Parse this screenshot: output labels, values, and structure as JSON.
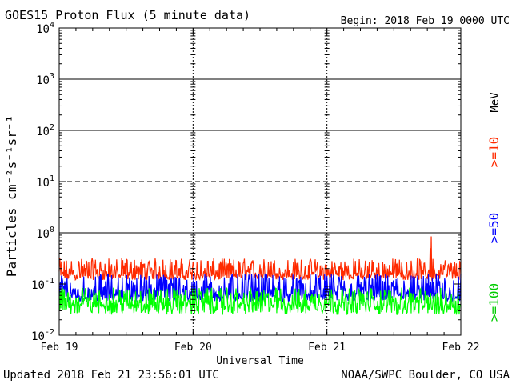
{
  "chart_data": {
    "type": "line",
    "title": "GOES15 Proton Flux (5 minute data)",
    "begin": "Begin: 2018 Feb 19 0000 UTC",
    "xlabel": "Universal Time",
    "ylabel": "Particles cm⁻²s⁻¹sr⁻¹",
    "yscale": "log",
    "ylim": [
      0.01,
      10000
    ],
    "xlim_days": [
      0,
      3
    ],
    "x_ticks": [
      {
        "label": "Feb 19",
        "day": 0
      },
      {
        "label": "Feb 20",
        "day": 1
      },
      {
        "label": "Feb 21",
        "day": 2
      },
      {
        "label": "Feb 22",
        "day": 3
      }
    ],
    "y_ticks": [
      {
        "base": "10",
        "exp": "4",
        "value": 10000
      },
      {
        "base": "10",
        "exp": "3",
        "value": 1000
      },
      {
        "base": "10",
        "exp": "2",
        "value": 100
      },
      {
        "base": "10",
        "exp": "1",
        "value": 10
      },
      {
        "base": "10",
        "exp": "0",
        "value": 1
      },
      {
        "base": "10",
        "exp": "-1",
        "value": 0.1
      },
      {
        "base": "10",
        "exp": "-2",
        "value": 0.01
      }
    ],
    "threshold_lines": [
      {
        "value": 1000,
        "style": "solid"
      },
      {
        "value": 100,
        "style": "solid"
      },
      {
        "value": 10,
        "style": "dashed"
      },
      {
        "value": 1,
        "style": "solid"
      }
    ],
    "unit_label": "MeV",
    "series": [
      {
        "name": ">=10",
        "color": "#ff2a00",
        "baseline": 0.15,
        "low": 0.12,
        "high": 0.32,
        "spikes": [
          {
            "day": 2.78,
            "value": 0.85
          },
          {
            "day": 2.77,
            "value": 0.5
          }
        ]
      },
      {
        "name": ">=50",
        "color": "#0000ff",
        "baseline": 0.06,
        "low": 0.045,
        "high": 0.16,
        "spikes": []
      },
      {
        "name": ">=100",
        "color": "#00ff00",
        "baseline": 0.04,
        "low": 0.025,
        "high": 0.085,
        "spikes": []
      }
    ]
  },
  "footer": {
    "updated": "Updated 2018 Feb 21 23:56:01 UTC",
    "source": "NOAA/SWPC Boulder, CO USA"
  }
}
